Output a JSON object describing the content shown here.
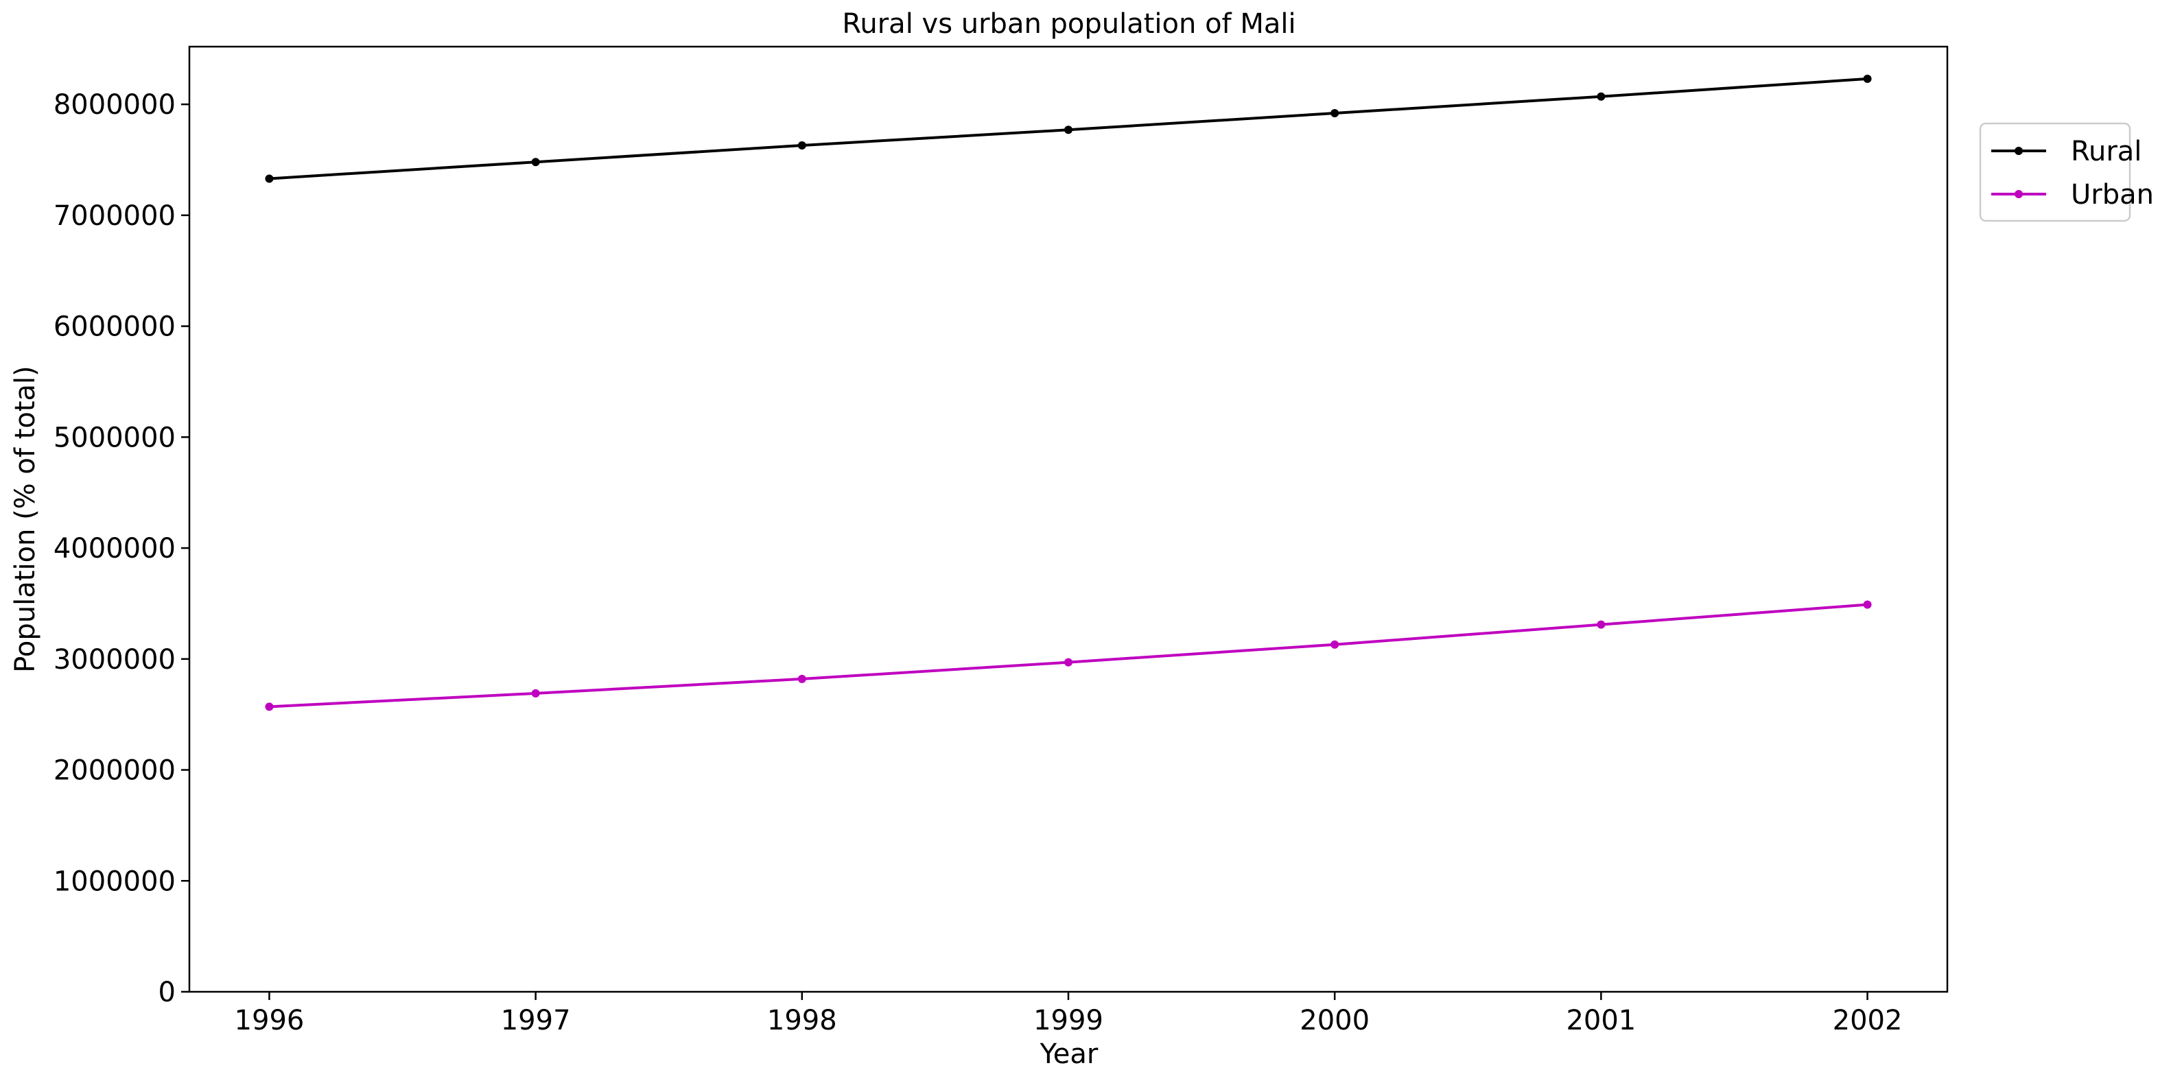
{
  "chart_data": {
    "type": "line",
    "title": "Rural vs urban population of Mali",
    "xlabel": "Year",
    "ylabel": "Population (% of total)",
    "x": [
      1996,
      1997,
      1998,
      1999,
      2000,
      2001,
      2002
    ],
    "x_tick_labels": [
      "1996",
      "1997",
      "1998",
      "1999",
      "2000",
      "2001",
      "2002"
    ],
    "y_ticks": [
      0,
      1000000,
      2000000,
      3000000,
      4000000,
      5000000,
      6000000,
      7000000,
      8000000
    ],
    "y_tick_labels": [
      "0",
      "1000000",
      "2000000",
      "3000000",
      "4000000",
      "5000000",
      "6000000",
      "7000000",
      "8000000"
    ],
    "xlim": [
      1995.7,
      2002.3
    ],
    "ylim": [
      0,
      8520000
    ],
    "grid": false,
    "legend_placement": "outside-top-right",
    "series": [
      {
        "name": "Rural",
        "color": "#000000",
        "marker": "circle",
        "values": [
          7330000,
          7480000,
          7630000,
          7770000,
          7920000,
          8070000,
          8230000
        ]
      },
      {
        "name": "Urban",
        "color": "#bf00bf",
        "marker": "circle",
        "values": [
          2570000,
          2690000,
          2820000,
          2970000,
          3130000,
          3310000,
          3490000
        ]
      }
    ]
  }
}
